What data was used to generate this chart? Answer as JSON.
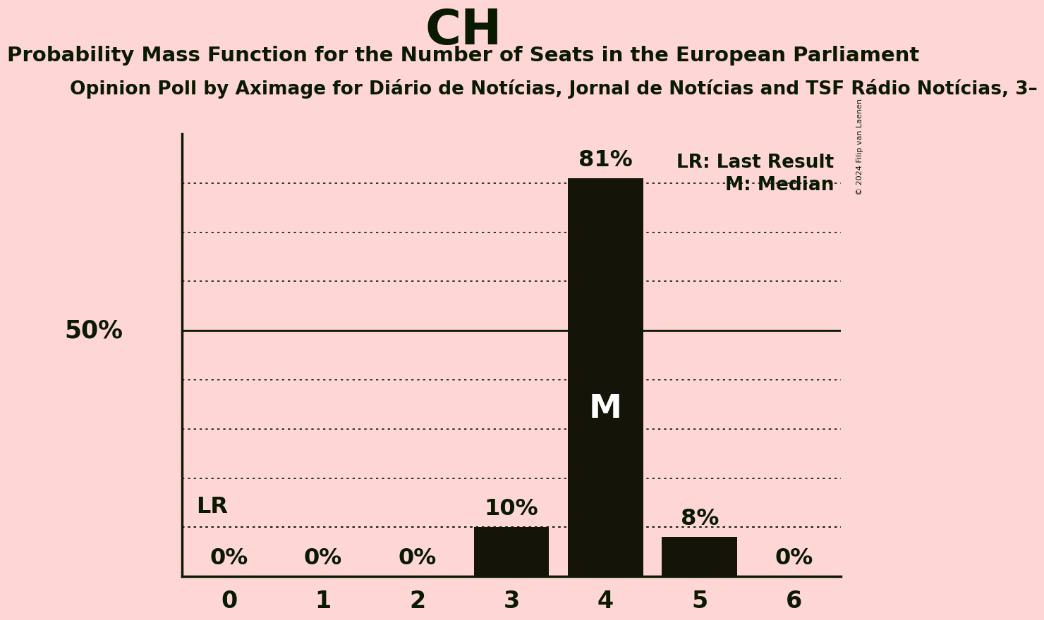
{
  "title": "CH",
  "subtitle": "Probability Mass Function for the Number of Seats in the European Parliament",
  "poll_line": "Opinion Poll by Aximage for Diário de Notícias, Jornal de Notícias and TSF Rádio Notícias, 3–",
  "categories": [
    0,
    1,
    2,
    3,
    4,
    5,
    6
  ],
  "values": [
    0,
    0,
    0,
    10,
    81,
    8,
    0
  ],
  "bar_color": "#141408",
  "background_color": "#ffd6d6",
  "text_color": "#0a1a00",
  "title_fontsize": 50,
  "subtitle_fontsize": 21,
  "poll_fontsize": 19,
  "bar_label_fontsize": 23,
  "ylabel_fontsize": 25,
  "tick_fontsize": 24,
  "ylim": [
    0,
    90
  ],
  "yticks": [
    10,
    20,
    30,
    40,
    50,
    60,
    70,
    80
  ],
  "solid_ytick": 50,
  "lr_value": 10,
  "median_seat": 4,
  "copyright_text": "© 2024 Filip van Laenen",
  "legend_lr": "LR: Last Result",
  "legend_m": "M: Median"
}
